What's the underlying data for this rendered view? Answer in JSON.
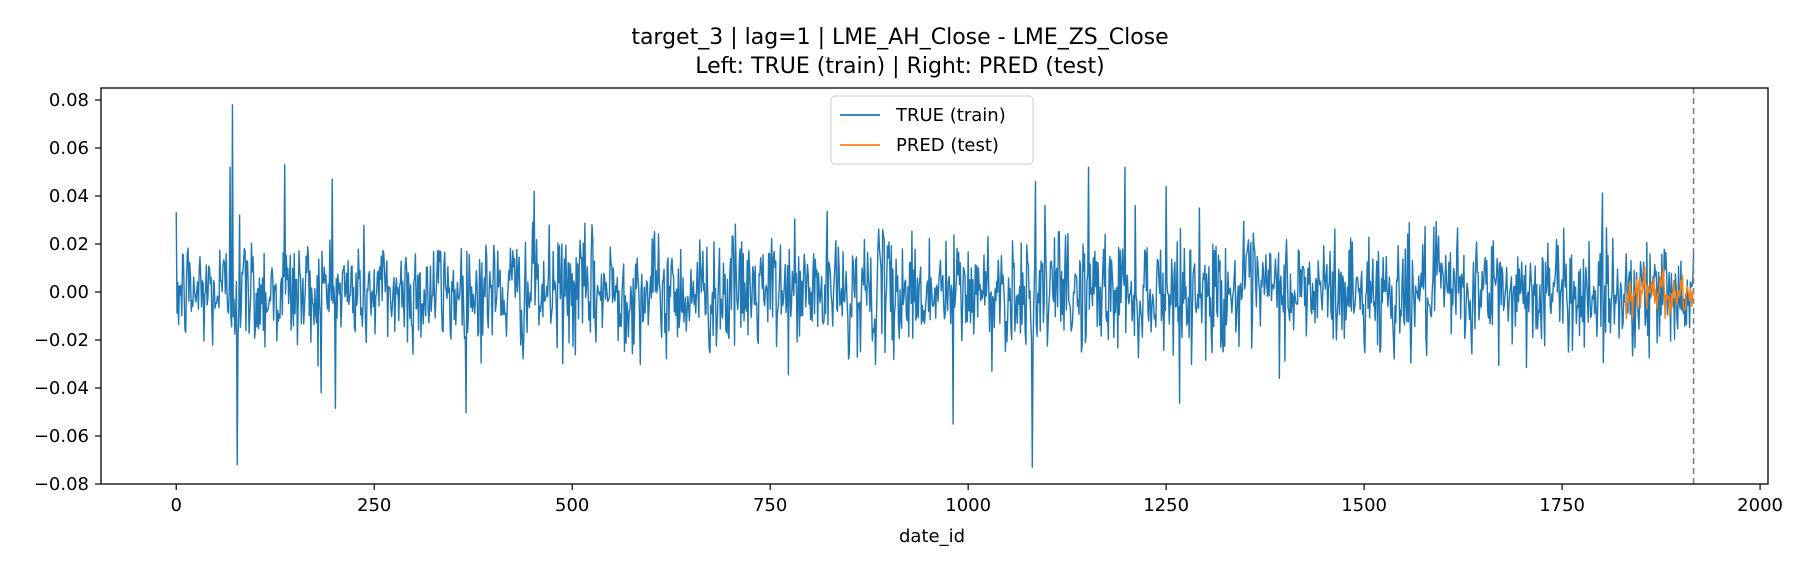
{
  "chart_data": {
    "type": "line",
    "title": "target_3 | lag=1 | LME_AH_Close - LME_ZS_Close",
    "subtitle": "Left: TRUE (train) | Right: PRED (test)",
    "xlabel": "date_id",
    "ylabel": "",
    "xlim": [
      -95,
      2010
    ],
    "ylim": [
      -0.08,
      0.085
    ],
    "x_ticks": [
      0,
      250,
      500,
      750,
      1000,
      1250,
      1500,
      1750,
      2000
    ],
    "x_tick_labels": [
      "0",
      "250",
      "500",
      "750",
      "1000",
      "1250",
      "1500",
      "1750",
      "2000"
    ],
    "y_ticks": [
      -0.08,
      -0.06,
      -0.04,
      -0.02,
      0.0,
      0.02,
      0.04,
      0.06,
      0.08
    ],
    "y_tick_labels": [
      "−0.08",
      "−0.06",
      "−0.04",
      "−0.02",
      "0.00",
      "0.02",
      "0.04",
      "0.06",
      "0.08"
    ],
    "grid": false,
    "legend_position": "upper center",
    "vertical_line": {
      "x": 1916,
      "style": "dashed",
      "color": "#808080"
    },
    "series": [
      {
        "name": "TRUE (train)",
        "color": "#1f77b4",
        "x_range": [
          0,
          1916
        ],
        "stats": {
          "std": 0.012,
          "clip": [
            -0.072,
            0.078
          ]
        },
        "highlights": [
          {
            "x": 68,
            "y": 0.052
          },
          {
            "x": 71,
            "y": 0.078
          },
          {
            "x": 77,
            "y": -0.072
          },
          {
            "x": 80,
            "y": 0.032
          },
          {
            "x": 137,
            "y": 0.053
          },
          {
            "x": 183,
            "y": -0.042
          },
          {
            "x": 197,
            "y": 0.047
          },
          {
            "x": 452,
            "y": 0.042
          },
          {
            "x": 981,
            "y": -0.055
          },
          {
            "x": 1081,
            "y": -0.073
          },
          {
            "x": 1085,
            "y": 0.046
          },
          {
            "x": 1152,
            "y": 0.052
          },
          {
            "x": 1198,
            "y": 0.052
          },
          {
            "x": 1250,
            "y": 0.044
          }
        ]
      },
      {
        "name": "PRED (test)",
        "color": "#ff7f0e",
        "x_range": [
          1830,
          1916
        ],
        "stats": {
          "std": 0.005,
          "clip": [
            -0.011,
            0.016
          ]
        }
      }
    ]
  }
}
